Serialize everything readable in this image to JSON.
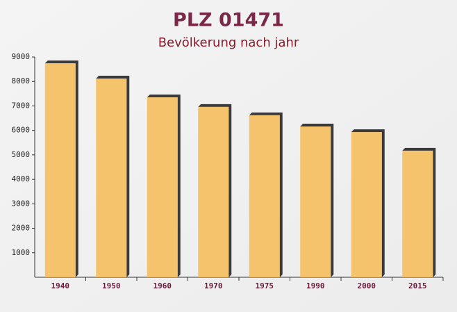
{
  "chart_data": {
    "type": "bar",
    "title": "PLZ 01471",
    "subtitle": "Bevölkerung nach jahr",
    "categories": [
      "1940",
      "1950",
      "1960",
      "1970",
      "1975",
      "1990",
      "2000",
      "2015"
    ],
    "values": [
      8740,
      8120,
      7350,
      6960,
      6620,
      6160,
      5930,
      5170
    ],
    "color": "#f6bf62",
    "ylim": [
      0,
      9000
    ],
    "yticks": [
      1000,
      2000,
      3000,
      4000,
      5000,
      6000,
      7000,
      8000,
      9000
    ]
  }
}
